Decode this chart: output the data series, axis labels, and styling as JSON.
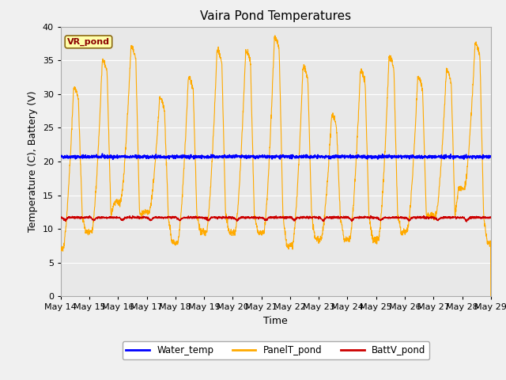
{
  "title": "Vaira Pond Temperatures",
  "xlabel": "Time",
  "ylabel": "Temperature (C), Battery (V)",
  "annotation": "VR_pond",
  "ylim": [
    0,
    40
  ],
  "yticks": [
    0,
    5,
    10,
    15,
    20,
    25,
    30,
    35,
    40
  ],
  "xtick_labels": [
    "May 14",
    "May 15",
    "May 16",
    "May 17",
    "May 18",
    "May 19",
    "May 20",
    "May 21",
    "May 22",
    "May 23",
    "May 24",
    "May 25",
    "May 26",
    "May 27",
    "May 28",
    "May 29"
  ],
  "water_temp_value": 20.7,
  "batt_base": 11.7,
  "bg_color": "#e8e8e8",
  "fig_color": "#f0f0f0",
  "water_color": "#0000ff",
  "panel_color": "#ffaa00",
  "batt_color": "#cc0000",
  "legend_labels": [
    "Water_temp",
    "PanelT_pond",
    "BattV_pond"
  ],
  "grid_color": "#ffffff",
  "title_fontsize": 11,
  "axis_fontsize": 9,
  "tick_fontsize": 8,
  "panel_peaks": [
    31,
    35,
    37,
    29.5,
    32.5,
    36.5,
    36.5,
    38.5,
    34,
    27,
    33.5,
    35.5,
    32.5,
    33.5,
    37.5
  ],
  "panel_night_vals": [
    7.0,
    9.5,
    14.0,
    12.5,
    8.0,
    9.5,
    9.5,
    9.5,
    7.5,
    8.5,
    8.5,
    8.5,
    9.5,
    12.0,
    16.0
  ]
}
